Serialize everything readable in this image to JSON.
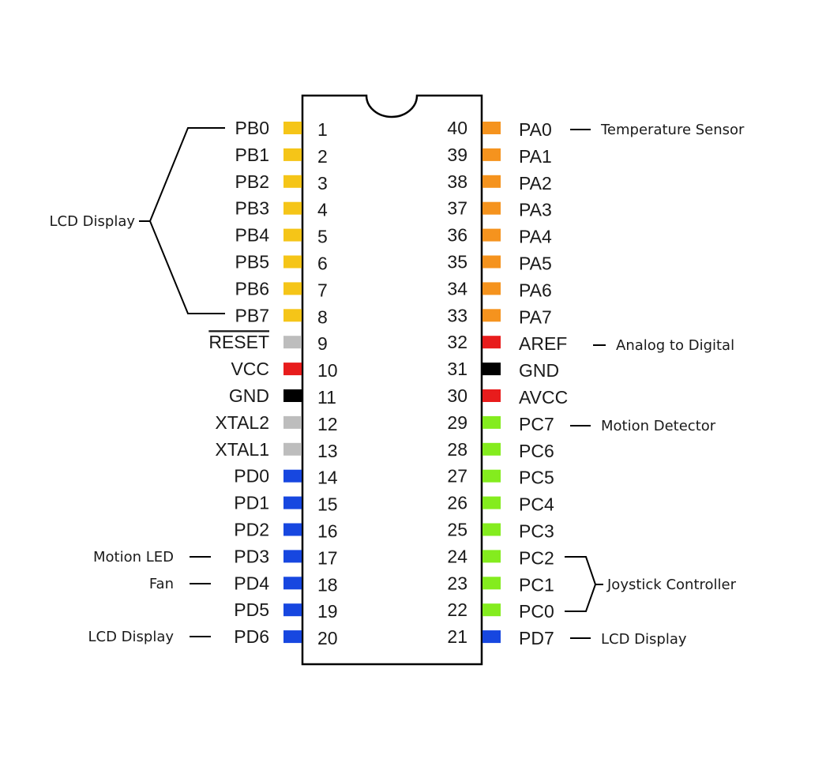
{
  "colors": {
    "yellow": "#f5c518",
    "orange": "#f5931e",
    "gray": "#bdbdbd",
    "red": "#e81c1c",
    "black": "#000000",
    "blue": "#1747e0",
    "green": "#84ec1e"
  },
  "left_pins": [
    {
      "num": "1",
      "name": "PB0",
      "color": "yellow"
    },
    {
      "num": "2",
      "name": "PB1",
      "color": "yellow"
    },
    {
      "num": "3",
      "name": "PB2",
      "color": "yellow"
    },
    {
      "num": "4",
      "name": "PB3",
      "color": "yellow"
    },
    {
      "num": "5",
      "name": "PB4",
      "color": "yellow"
    },
    {
      "num": "6",
      "name": "PB5",
      "color": "yellow"
    },
    {
      "num": "7",
      "name": "PB6",
      "color": "yellow"
    },
    {
      "num": "8",
      "name": "PB7",
      "color": "yellow"
    },
    {
      "num": "9",
      "name": "RESET",
      "color": "gray",
      "overline": true
    },
    {
      "num": "10",
      "name": "VCC",
      "color": "red"
    },
    {
      "num": "11",
      "name": "GND",
      "color": "black"
    },
    {
      "num": "12",
      "name": "XTAL2",
      "color": "gray"
    },
    {
      "num": "13",
      "name": "XTAL1",
      "color": "gray"
    },
    {
      "num": "14",
      "name": "PD0",
      "color": "blue"
    },
    {
      "num": "15",
      "name": "PD1",
      "color": "blue"
    },
    {
      "num": "16",
      "name": "PD2",
      "color": "blue"
    },
    {
      "num": "17",
      "name": "PD3",
      "color": "blue"
    },
    {
      "num": "18",
      "name": "PD4",
      "color": "blue"
    },
    {
      "num": "19",
      "name": "PD5",
      "color": "blue"
    },
    {
      "num": "20",
      "name": "PD6",
      "color": "blue"
    }
  ],
  "right_pins": [
    {
      "num": "40",
      "name": "PA0",
      "color": "orange"
    },
    {
      "num": "39",
      "name": "PA1",
      "color": "orange"
    },
    {
      "num": "38",
      "name": "PA2",
      "color": "orange"
    },
    {
      "num": "37",
      "name": "PA3",
      "color": "orange"
    },
    {
      "num": "36",
      "name": "PA4",
      "color": "orange"
    },
    {
      "num": "35",
      "name": "PA5",
      "color": "orange"
    },
    {
      "num": "34",
      "name": "PA6",
      "color": "orange"
    },
    {
      "num": "33",
      "name": "PA7",
      "color": "orange"
    },
    {
      "num": "32",
      "name": "AREF",
      "color": "red"
    },
    {
      "num": "31",
      "name": "GND",
      "color": "black"
    },
    {
      "num": "30",
      "name": "AVCC",
      "color": "red"
    },
    {
      "num": "29",
      "name": "PC7",
      "color": "green"
    },
    {
      "num": "28",
      "name": "PC6",
      "color": "green"
    },
    {
      "num": "27",
      "name": "PC5",
      "color": "green"
    },
    {
      "num": "26",
      "name": "PC4",
      "color": "green"
    },
    {
      "num": "25",
      "name": "PC3",
      "color": "green"
    },
    {
      "num": "24",
      "name": "PC2",
      "color": "green"
    },
    {
      "num": "23",
      "name": "PC1",
      "color": "green"
    },
    {
      "num": "22",
      "name": "PC0",
      "color": "green"
    },
    {
      "num": "21",
      "name": "PD7",
      "color": "blue"
    }
  ],
  "annotations": {
    "lcd_display_portb": "LCD Display",
    "motion_led": "Motion LED",
    "fan": "Fan",
    "lcd_display_pd6": "LCD Display",
    "temperature_sensor": "Temperature Sensor",
    "analog_to_digital": "Analog to Digital",
    "motion_detector": "Motion Detector",
    "joystick_controller": "Joystick Controller",
    "lcd_display_pd7": "LCD Display"
  }
}
